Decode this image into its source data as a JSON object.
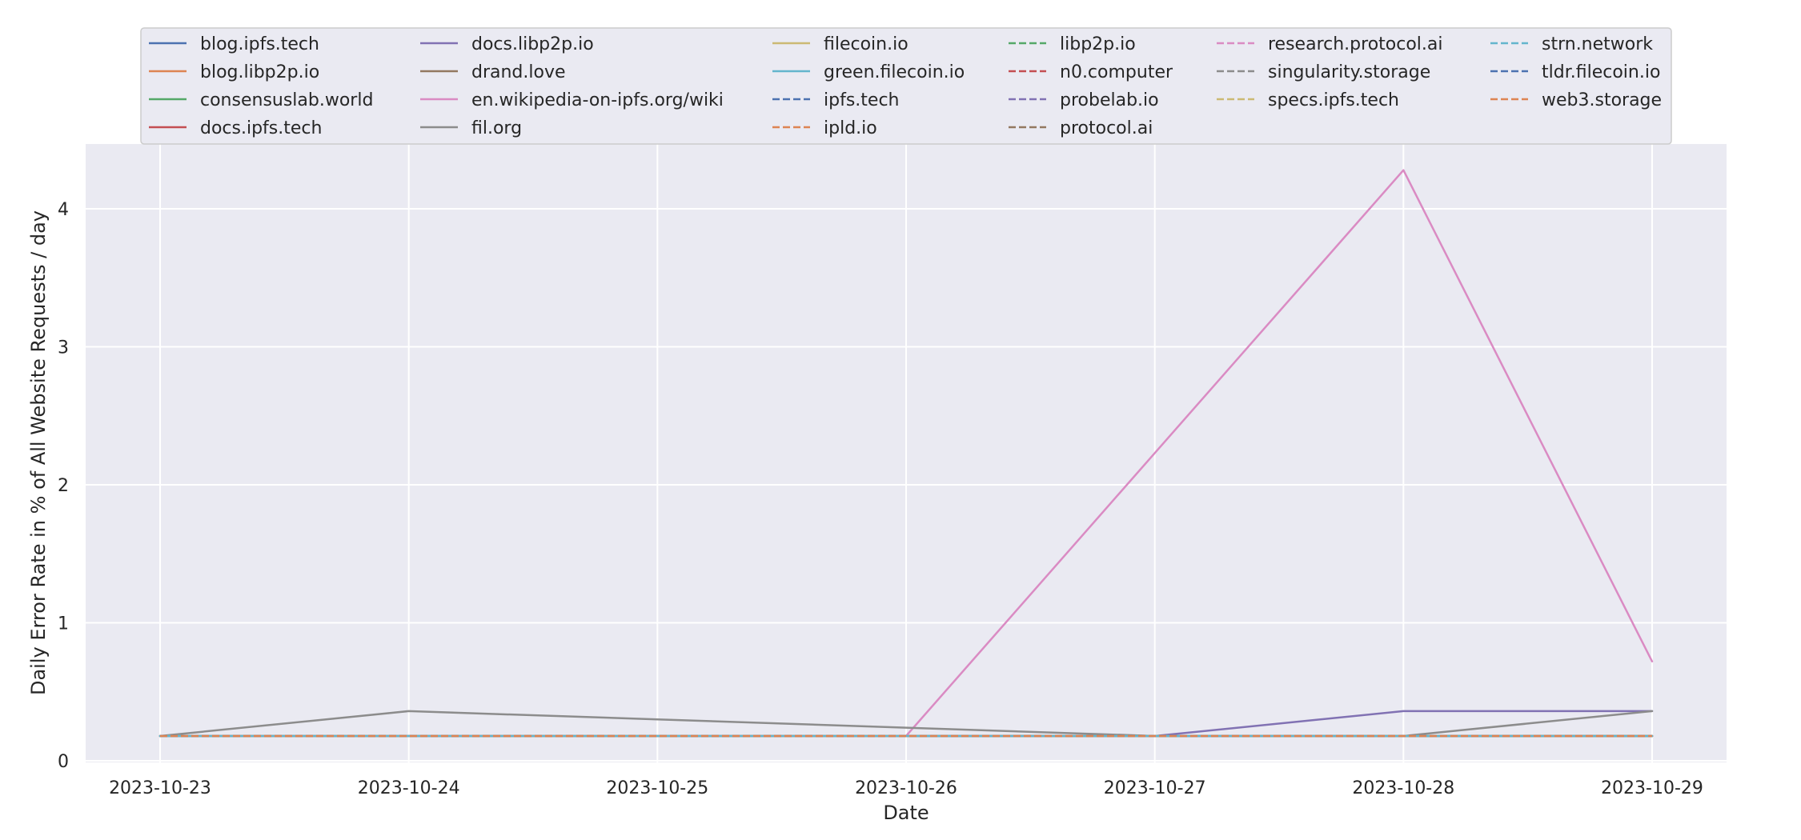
{
  "chart_data": {
    "type": "line",
    "title": "",
    "xlabel": "Date",
    "ylabel": "Daily Error Rate in % of All Website Requests / day",
    "x": [
      "2023-10-23",
      "2023-10-24",
      "2023-10-25",
      "2023-10-26",
      "2023-10-27",
      "2023-10-28",
      "2023-10-29"
    ],
    "y_ticks": [
      0,
      1,
      2,
      3,
      4
    ],
    "ylim": [
      0,
      4.5
    ],
    "grid": true,
    "legend_position": "top",
    "series": [
      {
        "name": "blog.ipfs.tech",
        "style": "solid",
        "color": "#4c72b0",
        "values": [
          0.18,
          0.18,
          0.18,
          0.18,
          0.18,
          0.18,
          0.18
        ]
      },
      {
        "name": "blog.libp2p.io",
        "style": "solid",
        "color": "#dd8452",
        "values": [
          0.18,
          0.18,
          0.18,
          0.18,
          0.18,
          0.18,
          0.18
        ]
      },
      {
        "name": "consensuslab.world",
        "style": "solid",
        "color": "#55a868",
        "values": [
          0.18,
          0.18,
          0.18,
          0.18,
          0.18,
          0.18,
          0.18
        ]
      },
      {
        "name": "docs.ipfs.tech",
        "style": "solid",
        "color": "#c44e52",
        "values": [
          0.18,
          0.18,
          0.18,
          0.18,
          0.18,
          0.18,
          0.18
        ]
      },
      {
        "name": "docs.libp2p.io",
        "style": "solid",
        "color": "#8172b3",
        "values": [
          0.18,
          0.18,
          0.18,
          0.18,
          0.18,
          0.36,
          0.36
        ]
      },
      {
        "name": "drand.love",
        "style": "solid",
        "color": "#937860",
        "values": [
          0.18,
          0.18,
          0.18,
          0.18,
          0.18,
          0.18,
          0.18
        ]
      },
      {
        "name": "en.wikipedia-on-ipfs.org/wiki",
        "style": "solid",
        "color": "#da8bc3",
        "values": [
          0.18,
          0.18,
          0.18,
          0.18,
          2.23,
          4.28,
          0.72
        ]
      },
      {
        "name": "fil.org",
        "style": "solid",
        "color": "#8c8c8c",
        "values": [
          0.18,
          0.36,
          0.3,
          0.24,
          0.18,
          0.18,
          0.36
        ]
      },
      {
        "name": "filecoin.io",
        "style": "solid",
        "color": "#ccb974",
        "values": [
          0.18,
          0.18,
          0.18,
          0.18,
          0.18,
          0.18,
          0.18
        ]
      },
      {
        "name": "green.filecoin.io",
        "style": "solid",
        "color": "#64b5cd",
        "values": [
          0.18,
          0.18,
          0.18,
          0.18,
          0.18,
          0.18,
          0.18
        ]
      },
      {
        "name": "ipfs.tech",
        "style": "dashed",
        "color": "#4c72b0",
        "values": [
          0.18,
          0.18,
          0.18,
          0.18,
          0.18,
          0.18,
          0.18
        ]
      },
      {
        "name": "ipld.io",
        "style": "dashed",
        "color": "#dd8452",
        "values": [
          0.18,
          0.18,
          0.18,
          0.18,
          0.18,
          0.18,
          0.18
        ]
      },
      {
        "name": "libp2p.io",
        "style": "dashed",
        "color": "#55a868",
        "values": [
          0.18,
          0.18,
          0.18,
          0.18,
          0.18,
          0.18,
          0.18
        ]
      },
      {
        "name": "n0.computer",
        "style": "dashed",
        "color": "#c44e52",
        "values": [
          0.18,
          0.18,
          0.18,
          0.18,
          0.18,
          0.18,
          0.18
        ]
      },
      {
        "name": "probelab.io",
        "style": "dashed",
        "color": "#8172b3",
        "values": [
          0.18,
          0.18,
          0.18,
          0.18,
          0.18,
          0.18,
          0.18
        ]
      },
      {
        "name": "protocol.ai",
        "style": "dashed",
        "color": "#937860",
        "values": [
          0.18,
          0.18,
          0.18,
          0.18,
          0.18,
          0.18,
          0.18
        ]
      },
      {
        "name": "research.protocol.ai",
        "style": "dashed",
        "color": "#da8bc3",
        "values": [
          0.18,
          0.18,
          0.18,
          0.18,
          0.18,
          0.18,
          0.18
        ]
      },
      {
        "name": "singularity.storage",
        "style": "dashed",
        "color": "#8c8c8c",
        "values": [
          0.18,
          0.18,
          0.18,
          0.18,
          0.18,
          0.18,
          0.18
        ]
      },
      {
        "name": "specs.ipfs.tech",
        "style": "dashed",
        "color": "#ccb974",
        "values": [
          0.18,
          0.18,
          0.18,
          0.18,
          0.18,
          0.18,
          0.18
        ]
      },
      {
        "name": "strn.network",
        "style": "dashed",
        "color": "#64b5cd",
        "values": [
          0.18,
          0.18,
          0.18,
          0.18,
          0.18,
          0.18,
          0.18
        ]
      },
      {
        "name": "tldr.filecoin.io",
        "style": "dashed",
        "color": "#4c72b0",
        "values": [
          0.18,
          0.18,
          0.18,
          0.18,
          0.18,
          0.18,
          0.18
        ]
      },
      {
        "name": "web3.storage",
        "style": "dashed",
        "color": "#dd8452",
        "values": [
          0.18,
          0.18,
          0.18,
          0.18,
          0.18,
          0.18,
          0.18
        ]
      }
    ]
  }
}
